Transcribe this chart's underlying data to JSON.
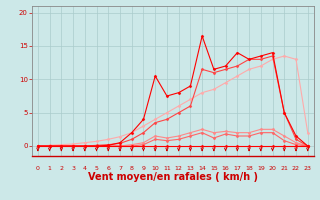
{
  "background_color": "#cce8e8",
  "grid_color": "#aacccc",
  "xlabel": "Vent moyen/en rafales ( km/h )",
  "xlabel_color": "#cc0000",
  "xlabel_fontsize": 7,
  "tick_color": "#cc0000",
  "ylim_min": -1.5,
  "ylim_max": 21,
  "xlim_min": -0.5,
  "xlim_max": 23.5,
  "yticks": [
    0,
    5,
    10,
    15,
    20
  ],
  "xticks": [
    0,
    1,
    2,
    3,
    4,
    5,
    6,
    7,
    8,
    9,
    10,
    11,
    12,
    13,
    14,
    15,
    16,
    17,
    18,
    19,
    20,
    21,
    22,
    23
  ],
  "x": [
    0,
    1,
    2,
    3,
    4,
    5,
    6,
    7,
    8,
    9,
    10,
    11,
    12,
    13,
    14,
    15,
    16,
    17,
    18,
    19,
    20,
    21,
    22,
    23
  ],
  "lines": [
    {
      "y": [
        0,
        0,
        0,
        0,
        0,
        0,
        0,
        0,
        0,
        0,
        0,
        0,
        0,
        0,
        0,
        0,
        0,
        0,
        0,
        0,
        0,
        0,
        0,
        0
      ],
      "color": "#ff0000",
      "lw": 0.8,
      "marker": "D",
      "ms": 1.5,
      "zorder": 5
    },
    {
      "y": [
        0,
        0,
        0,
        0,
        0,
        0,
        0,
        0,
        0,
        0.2,
        1.0,
        0.8,
        1.0,
        1.5,
        2.0,
        1.2,
        1.8,
        1.5,
        1.5,
        2.0,
        2.0,
        0.8,
        0.2,
        0
      ],
      "color": "#ff6666",
      "lw": 0.8,
      "marker": "D",
      "ms": 1.5,
      "zorder": 4
    },
    {
      "y": [
        0,
        0,
        0,
        0,
        0,
        0,
        0,
        0,
        0.2,
        0.5,
        1.5,
        1.2,
        1.5,
        2.0,
        2.5,
        2.0,
        2.2,
        2.0,
        2.0,
        2.5,
        2.5,
        1.5,
        0.5,
        0
      ],
      "color": "#ff8888",
      "lw": 0.8,
      "marker": "D",
      "ms": 1.5,
      "zorder": 3
    },
    {
      "y": [
        0,
        0,
        0,
        0,
        0,
        0.1,
        0.2,
        0.4,
        1.0,
        2.0,
        3.5,
        4.0,
        5.0,
        6.0,
        11.5,
        11.0,
        11.5,
        12.0,
        13.0,
        13.0,
        13.5,
        5.0,
        1.0,
        0
      ],
      "color": "#ff4444",
      "lw": 0.8,
      "marker": "D",
      "ms": 1.5,
      "zorder": 4
    },
    {
      "y": [
        0,
        0,
        0,
        0,
        0,
        0,
        0.1,
        0.5,
        2.0,
        4.0,
        10.5,
        7.5,
        8.0,
        9.0,
        16.5,
        11.5,
        12.0,
        14.0,
        13.0,
        13.5,
        14.0,
        5.0,
        1.5,
        0
      ],
      "color": "#ff0000",
      "lw": 0.8,
      "marker": "D",
      "ms": 1.5,
      "zorder": 5
    },
    {
      "y": [
        0,
        0.1,
        0.2,
        0.3,
        0.5,
        0.7,
        1.0,
        1.4,
        2.0,
        3.0,
        4.0,
        5.0,
        6.0,
        7.0,
        8.0,
        8.5,
        9.5,
        10.5,
        11.5,
        12.0,
        13.0,
        13.5,
        13.0,
        2.0
      ],
      "color": "#ffaaaa",
      "lw": 0.8,
      "marker": "D",
      "ms": 1.5,
      "zorder": 2
    }
  ],
  "arrow_color": "#cc0000",
  "spine_color": "#888888",
  "bottom_spine_color": "#cc0000"
}
